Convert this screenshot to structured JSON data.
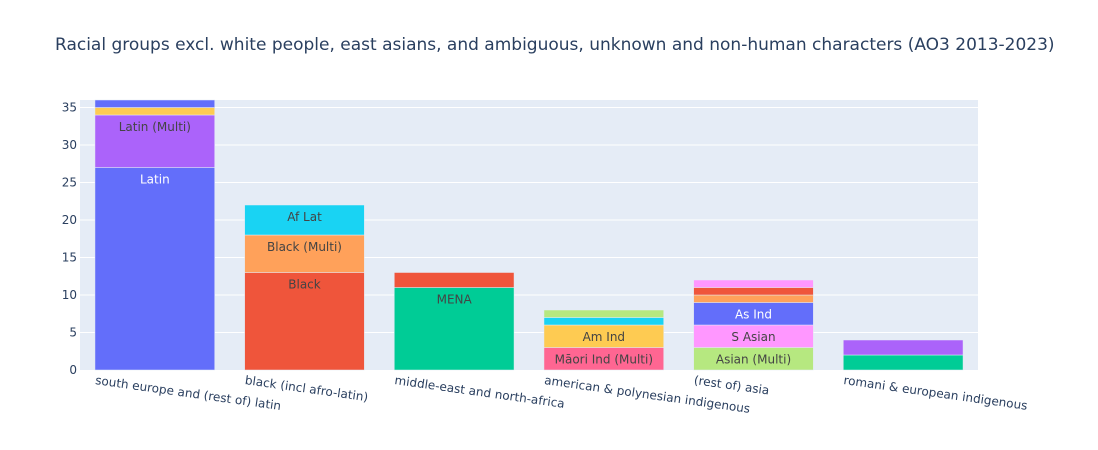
{
  "chart_data": {
    "type": "bar",
    "stacked": true,
    "title": "Racial groups excl. white people, east asians, and ambiguous, unknown and non-human characters (AO3 2013-2023)",
    "xlabel": "",
    "ylabel": "",
    "ylim": [
      0,
      36
    ],
    "yticks": [
      0,
      5,
      10,
      15,
      20,
      25,
      30,
      35
    ],
    "grid": true,
    "categories": [
      "south europe and (rest of) latin",
      "black (incl afro-latin)",
      "middle-east and north-africa",
      "american & polynesian indigenous",
      "(rest of) asia",
      "romani & european indigenous"
    ],
    "bars": [
      {
        "segments": [
          {
            "value": 27,
            "color": "#636efa",
            "label": "Latin",
            "label_color": "#ffffff"
          },
          {
            "value": 7,
            "color": "#ab63fa",
            "label": "Latin (Multi)",
            "label_color": "#444444"
          },
          {
            "value": 1,
            "color": "#fecb52",
            "label": ""
          },
          {
            "value": 1,
            "color": "#636efa",
            "label": ""
          }
        ]
      },
      {
        "segments": [
          {
            "value": 13,
            "color": "#ef553b",
            "label": "Black",
            "label_color": "#444444"
          },
          {
            "value": 5,
            "color": "#ffa15a",
            "label": "Black (Multi)",
            "label_color": "#444444"
          },
          {
            "value": 4,
            "color": "#19d3f3",
            "label": "Af Lat",
            "label_color": "#444444"
          }
        ]
      },
      {
        "segments": [
          {
            "value": 11,
            "color": "#00cc96",
            "label": "MENA",
            "label_color": "#444444"
          },
          {
            "value": 2,
            "color": "#ef553b",
            "label": ""
          }
        ]
      },
      {
        "segments": [
          {
            "value": 3,
            "color": "#ff6692",
            "label": "Māori Ind (Multi)",
            "label_color": "#444444"
          },
          {
            "value": 3,
            "color": "#fecb52",
            "label": "Am Ind",
            "label_color": "#444444"
          },
          {
            "value": 1,
            "color": "#19d3f3",
            "label": ""
          },
          {
            "value": 1,
            "color": "#b6e880",
            "label": ""
          }
        ]
      },
      {
        "segments": [
          {
            "value": 3,
            "color": "#b6e880",
            "label": "Asian (Multi)",
            "label_color": "#444444"
          },
          {
            "value": 3,
            "color": "#ff97ff",
            "label": "S Asian",
            "label_color": "#444444"
          },
          {
            "value": 3,
            "color": "#636efa",
            "label": "As Ind",
            "label_color": "#ffffff"
          },
          {
            "value": 1,
            "color": "#ffa15a",
            "label": ""
          },
          {
            "value": 1,
            "color": "#ef553b",
            "label": ""
          },
          {
            "value": 1,
            "color": "#ff97ff",
            "label": ""
          }
        ]
      },
      {
        "segments": [
          {
            "value": 2,
            "color": "#00cc96",
            "label": ""
          },
          {
            "value": 2,
            "color": "#ab63fa",
            "label": ""
          }
        ]
      }
    ]
  }
}
